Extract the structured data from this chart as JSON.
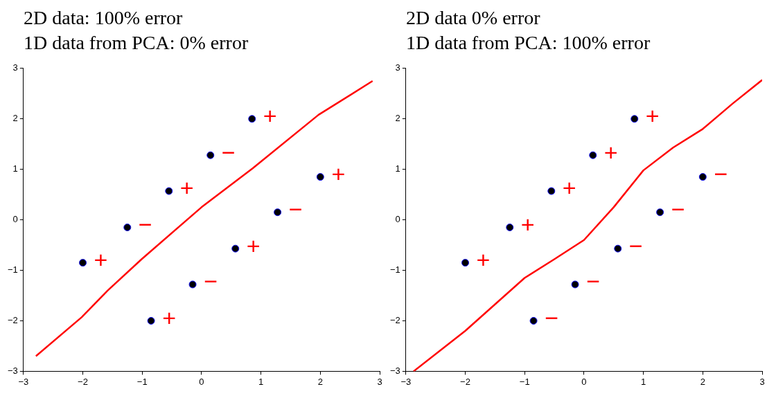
{
  "chart_data": [
    {
      "type": "scatter",
      "title": "2D data: 100% error",
      "subtitle": "1D data from PCA: 0% error",
      "xlim": [
        -3,
        3
      ],
      "ylim": [
        -3,
        3
      ],
      "xticks": [
        -3,
        -2,
        -1,
        0,
        1,
        2,
        3
      ],
      "yticks": [
        -3,
        -2,
        -1,
        0,
        1,
        2,
        3
      ],
      "grid": false,
      "legend": false,
      "series": [
        {
          "type": "line",
          "color": "#ff0000",
          "x": [
            -2.79,
            -2.02,
            -1.58,
            -1.01,
            0,
            0.86,
            1.97,
            2.88
          ],
          "values": [
            -2.7,
            -1.93,
            -1.4,
            -0.78,
            0.25,
            1.02,
            2.08,
            2.75
          ]
        },
        {
          "type": "scatter",
          "color": "#000000",
          "marker": "circle",
          "x": [
            -2,
            -1.25,
            -0.55,
            0.15,
            0.85,
            -0.85,
            -0.15,
            0.57,
            1.28,
            2
          ],
          "values": [
            -0.85,
            -0.15,
            0.57,
            1.28,
            2,
            -2,
            -1.28,
            -0.57,
            0.15,
            0.85
          ],
          "value_labels": [
            "+",
            "−",
            "+",
            "−",
            "+",
            "+",
            "−",
            "+",
            "−",
            "+"
          ]
        }
      ]
    },
    {
      "type": "scatter",
      "title": "2D data 0% error",
      "subtitle": "1D data from PCA: 100% error",
      "xlim": [
        -3,
        3
      ],
      "ylim": [
        -3,
        3
      ],
      "xticks": [
        -3,
        -2,
        -1,
        0,
        1,
        2,
        3
      ],
      "yticks": [
        -3,
        -2,
        -1,
        0,
        1,
        2,
        3
      ],
      "grid": false,
      "legend": false,
      "series": [
        {
          "type": "line",
          "color": "#ff0000",
          "x": [
            -2.87,
            -2,
            -1,
            -0.5,
            0,
            0.5,
            1,
            1.5,
            2,
            2.5,
            3
          ],
          "values": [
            -3,
            -2.2,
            -1.15,
            -0.78,
            -0.4,
            0.25,
            0.98,
            1.43,
            1.8,
            2.3,
            2.77
          ]
        },
        {
          "type": "scatter",
          "color": "#000000",
          "marker": "circle",
          "x": [
            -2,
            -1.25,
            -0.55,
            0.15,
            0.85,
            -0.85,
            -0.15,
            0.57,
            1.28,
            2
          ],
          "values": [
            -0.85,
            -0.15,
            0.57,
            1.28,
            2,
            -2,
            -1.28,
            -0.57,
            0.15,
            0.85
          ],
          "value_labels": [
            "+",
            "+",
            "+",
            "+",
            "+",
            "−",
            "−",
            "−",
            "−",
            "−"
          ]
        }
      ]
    }
  ]
}
